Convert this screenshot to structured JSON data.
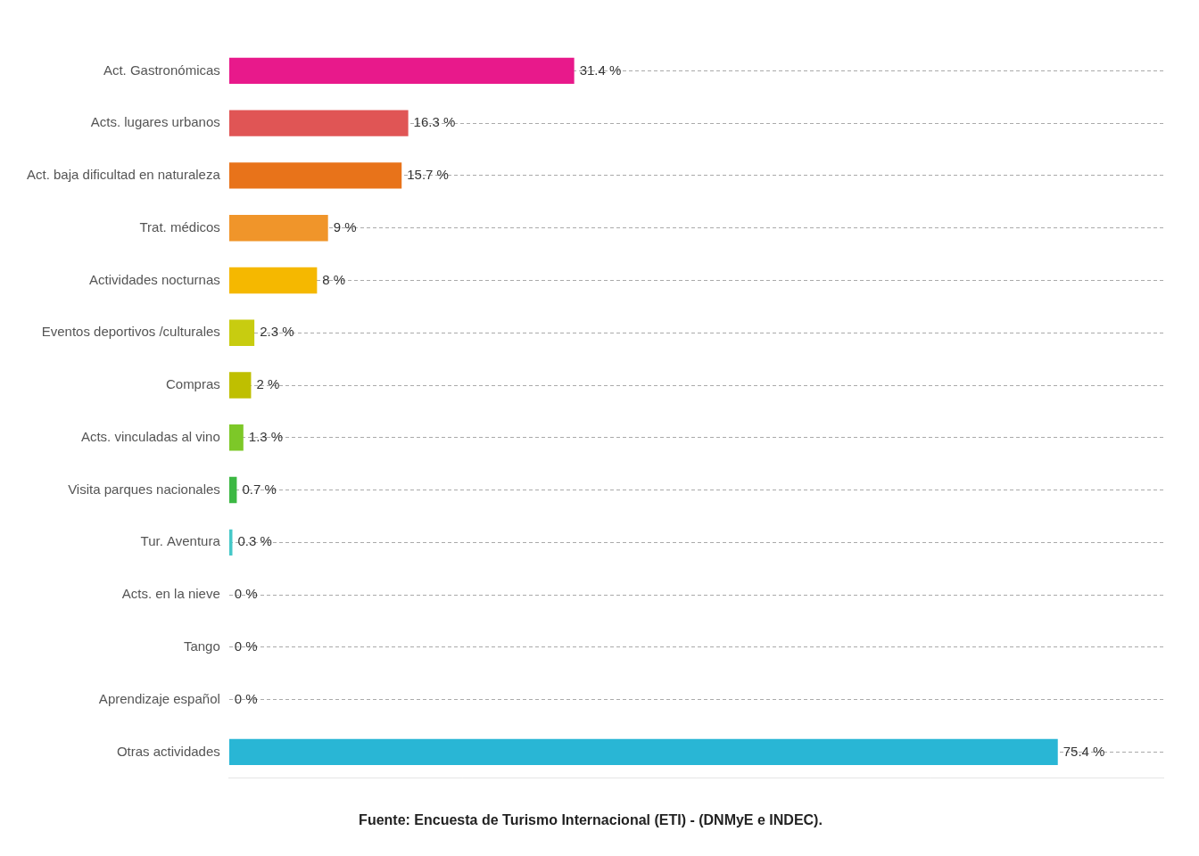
{
  "chart_data": {
    "type": "bar",
    "orientation": "horizontal",
    "categories": [
      "Act. Gastronómicas",
      "Acts. lugares urbanos",
      "Act. baja dificultad en naturaleza",
      "Trat. médicos",
      "Actividades nocturnas",
      "Eventos deportivos /culturales",
      "Compras",
      "Acts. vinculadas al vino",
      "Visita parques nacionales",
      "Tur. Aventura",
      "Acts. en la nieve",
      "Tango",
      "Aprendizaje español",
      "Otras actividades"
    ],
    "values": [
      31.4,
      16.3,
      15.7,
      9.0,
      8.0,
      2.3,
      2.0,
      1.3,
      0.7,
      0.3,
      0.0,
      0.0,
      0.0,
      75.4
    ],
    "value_labels": [
      "31.4 %",
      "16.3 %",
      "15.7 %",
      "9 %",
      "8 %",
      "2.3 %",
      "2 %",
      "1.3 %",
      "0.7 %",
      "0.3 %",
      "0 %",
      "0 %",
      "0 %",
      "75.4 %"
    ],
    "colors": [
      "#E8198B",
      "#E05555",
      "#E8731A",
      "#F0952A",
      "#F5B800",
      "#C8CC10",
      "#BFBF00",
      "#7DC828",
      "#3CB843",
      "#45C8C8",
      "#CCCCCC",
      "#CCCCCC",
      "#CCCCCC",
      "#29B6D5"
    ],
    "xlim": [
      0,
      85
    ],
    "grid": true,
    "tick_labels": "y",
    "data_labels": true,
    "annotations": [
      "Fuente: Encuesta de Turismo Internacional (ETI) - (DNMyE e INDEC)."
    ]
  }
}
